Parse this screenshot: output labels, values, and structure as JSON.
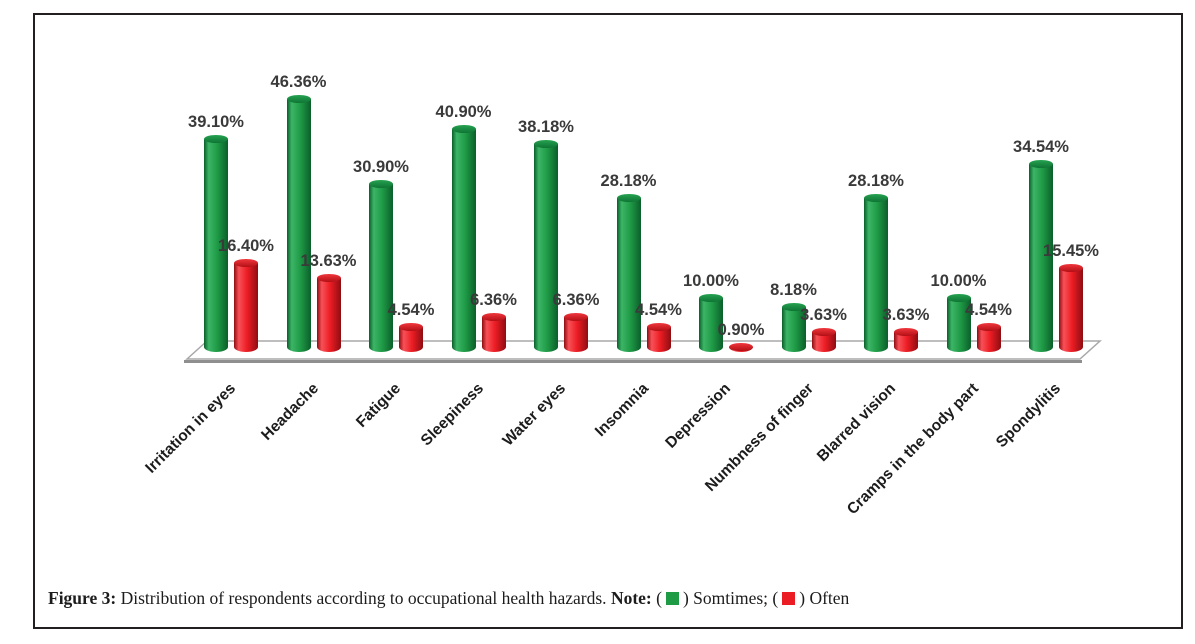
{
  "caption": {
    "figure_label": "Figure 3:",
    "text": "Distribution of respondents according to occupational health hazards.",
    "note_label": "Note:"
  },
  "chart_data": {
    "type": "bar",
    "bar_style": "3d-cylinder",
    "title": "",
    "xlabel": "",
    "ylabel": "",
    "ylim": [
      0,
      50
    ],
    "grid": false,
    "legend_position": "caption-note",
    "value_label_format": "0.00%",
    "categories": [
      "Irritation in eyes",
      "Headache",
      "Fatigue",
      "Sleepiness",
      "Water eyes",
      "Insomnia",
      "Depression",
      "Numbness of finger",
      "Blarred vision",
      "Cramps in the body part",
      "Spondylitis"
    ],
    "series": [
      {
        "name": "Somtimes",
        "color": "#1f9b46",
        "color_light": "#3cb566",
        "color_dark": "#0b5f2b",
        "cap_top": "#27a351",
        "cap_bottom": "#0e7434",
        "values": [
          39.1,
          46.36,
          30.9,
          40.9,
          38.18,
          28.18,
          10.0,
          8.18,
          28.18,
          10.0,
          34.54
        ]
      },
      {
        "name": "Often",
        "color": "#ec1c24",
        "color_light": "#f85157",
        "color_dark": "#8e0d12",
        "cap_top": "#f0383e",
        "cap_bottom": "#b30f16",
        "values": [
          16.4,
          13.63,
          4.54,
          6.36,
          6.36,
          4.54,
          0.9,
          3.63,
          3.63,
          4.54,
          15.45
        ]
      }
    ]
  }
}
